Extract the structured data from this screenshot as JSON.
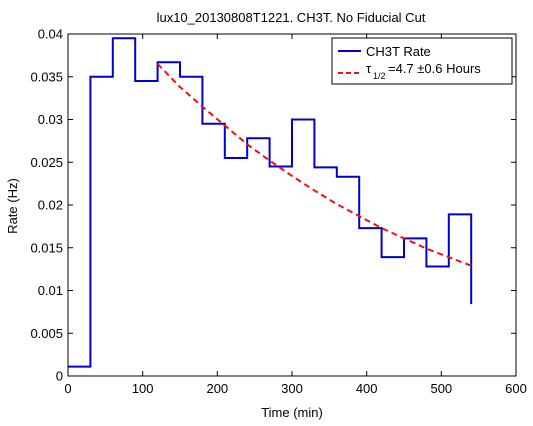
{
  "chart_data": {
    "type": "line",
    "title": "lux10_20130808T1221. CH3T. No Fiducial Cut",
    "xlabel": "Time (min)",
    "ylabel": "Rate (Hz)",
    "xlim": [
      0,
      600
    ],
    "ylim": [
      0,
      0.04
    ],
    "xticks": [
      0,
      100,
      200,
      300,
      400,
      500,
      600
    ],
    "yticks": [
      0,
      0.005,
      0.01,
      0.015,
      0.02,
      0.025,
      0.03,
      0.035,
      0.04
    ],
    "xtick_labels": [
      "0",
      "100",
      "200",
      "300",
      "400",
      "500",
      "600"
    ],
    "ytick_labels": [
      "0",
      "0.005",
      "0.01",
      "0.015",
      "0.02",
      "0.025",
      "0.03",
      "0.035",
      "0.04"
    ],
    "grid": false,
    "legend_position": "top-right",
    "legend_tau_symbol": "τ",
    "legend_tau_subscript": "1/2",
    "series": [
      {
        "name": "CH3T Rate",
        "style": "step",
        "color": "#0000cc",
        "bin_edges": [
          0,
          30,
          60,
          90,
          120,
          150,
          180,
          210,
          240,
          270,
          300,
          330,
          360,
          390,
          420,
          450,
          480,
          510,
          540
        ],
        "values": [
          0.0011,
          0.035,
          0.0395,
          0.0345,
          0.0367,
          0.035,
          0.0295,
          0.0255,
          0.0278,
          0.0245,
          0.03,
          0.0244,
          0.0233,
          0.0173,
          0.0139,
          0.0161,
          0.0128,
          0.0189
        ],
        "final_value": 0.0084
      },
      {
        "name": "=4.7  ±0.6 Hours",
        "style": "dashed",
        "color": "#ee1111",
        "x": [
          120,
          150,
          180,
          210,
          240,
          270,
          300,
          330,
          360,
          390,
          420,
          450,
          480,
          510,
          540
        ],
        "y": [
          0.0365,
          0.0338,
          0.0315,
          0.0293,
          0.0271,
          0.0252,
          0.0234,
          0.0217,
          0.0201,
          0.0187,
          0.0173,
          0.0161,
          0.0149,
          0.0139,
          0.0129
        ]
      }
    ]
  }
}
